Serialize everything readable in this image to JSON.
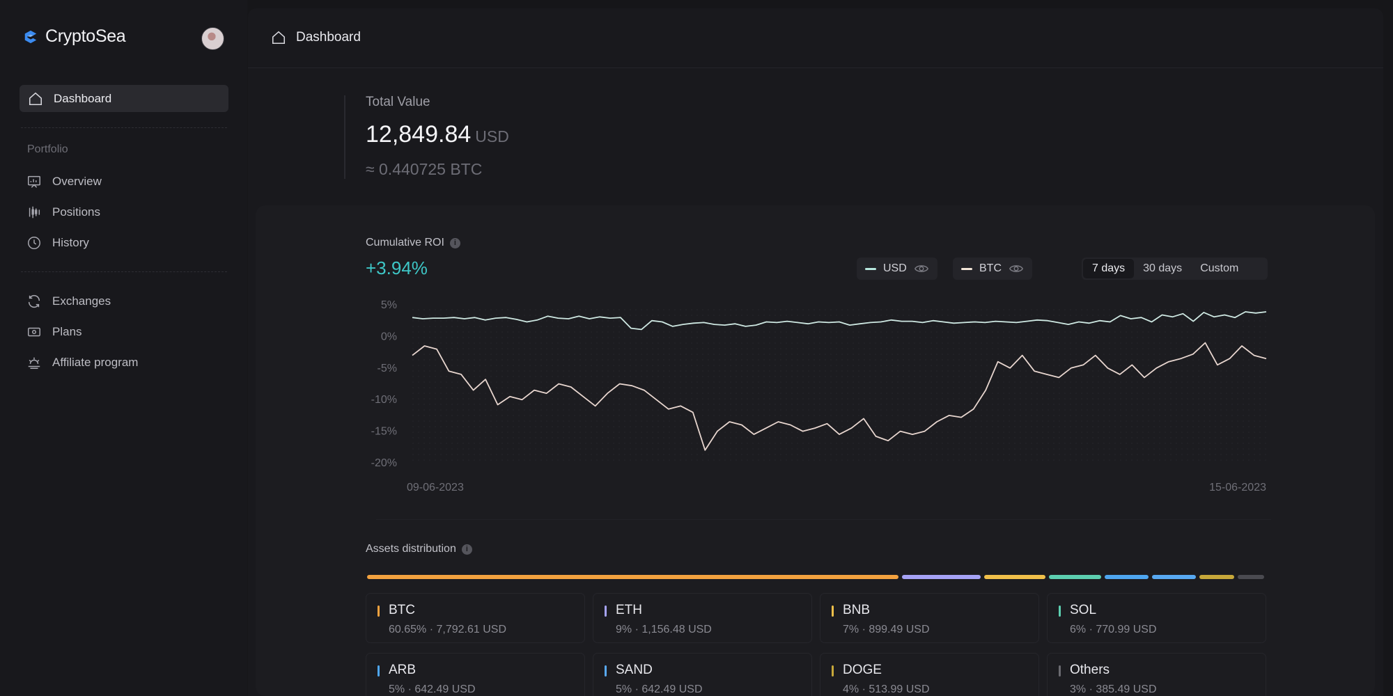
{
  "app": {
    "name": "CryptoSea"
  },
  "sidebar": {
    "active": {
      "label": "Dashboard",
      "icon": "home-icon"
    },
    "section_label": "Portfolio",
    "portfolio_items": [
      {
        "label": "Overview",
        "icon": "presentation-chart-icon"
      },
      {
        "label": "Positions",
        "icon": "candlestick-icon"
      },
      {
        "label": "History",
        "icon": "clock-icon"
      }
    ],
    "other_items": [
      {
        "label": "Exchanges",
        "icon": "refresh-icon"
      },
      {
        "label": "Plans",
        "icon": "banknote-icon"
      },
      {
        "label": "Affiliate program",
        "icon": "sunrise-icon"
      }
    ]
  },
  "header": {
    "breadcrumb": "Dashboard"
  },
  "total": {
    "label": "Total Value",
    "value": "12,849.84",
    "unit": "USD",
    "btc": "≈ 0.440725 BTC"
  },
  "roi": {
    "title": "Cumulative ROI",
    "info": "i",
    "value": "+3.94%",
    "toggles": [
      {
        "label": "USD",
        "color": "#b8e8df"
      },
      {
        "label": "BTC",
        "color": "#f2e6d8"
      }
    ],
    "ranges": [
      "7 days",
      "30 days",
      "Custom"
    ],
    "active_range": "7 days"
  },
  "chart_data": {
    "type": "line",
    "title": "",
    "xlabel": "",
    "ylabel": "",
    "x_ticks": [
      "09-06-2023",
      "15-06-2023"
    ],
    "y_ticks": [
      "5%",
      "0%",
      "-5%",
      "-10%",
      "-15%",
      "-20%"
    ],
    "ylim": [
      -20,
      5
    ],
    "series": [
      {
        "name": "USD",
        "color": "#cfe9e3",
        "values": [
          3.0,
          2.8,
          2.9,
          2.9,
          3.0,
          2.8,
          3.0,
          2.6,
          2.9,
          3.0,
          2.7,
          2.3,
          2.6,
          3.2,
          2.9,
          2.8,
          3.2,
          2.8,
          3.1,
          2.9,
          3.0,
          1.3,
          1.1,
          2.5,
          2.3,
          1.6,
          1.9,
          2.1,
          2.2,
          1.9,
          1.8,
          2.0,
          1.6,
          1.8,
          2.3,
          2.2,
          2.4,
          2.2,
          2.0,
          2.3,
          2.2,
          2.3,
          1.8,
          2.0,
          2.2,
          2.3,
          2.6,
          2.4,
          2.4,
          2.2,
          2.5,
          2.3,
          2.1,
          2.2,
          2.3,
          2.2,
          2.4,
          2.3,
          2.2,
          2.4,
          2.6,
          2.5,
          2.2,
          1.9,
          2.3,
          2.1,
          2.5,
          2.3,
          3.3,
          2.8,
          3.0,
          2.3,
          3.4,
          3.1,
          3.6,
          2.4,
          3.8,
          3.1,
          3.4,
          3.0,
          3.9,
          3.7,
          3.9
        ]
      },
      {
        "name": "BTC",
        "color": "#e8d6cf",
        "values": [
          -3.0,
          -1.5,
          -2.0,
          -5.5,
          -6.0,
          -8.5,
          -6.8,
          -10.8,
          -9.5,
          -10.0,
          -8.5,
          -9.0,
          -7.5,
          -8.0,
          -9.5,
          -11.0,
          -9.0,
          -7.5,
          -7.8,
          -8.5,
          -10.0,
          -11.5,
          -11.0,
          -12.0,
          -18.0,
          -15.0,
          -13.5,
          -14.0,
          -15.5,
          -14.5,
          -13.5,
          -14.0,
          -15.0,
          -14.5,
          -13.8,
          -15.5,
          -14.5,
          -13.0,
          -15.8,
          -16.5,
          -15.0,
          -15.5,
          -15.0,
          -13.5,
          -12.5,
          -12.8,
          -11.5,
          -8.5,
          -4.0,
          -5.0,
          -3.0,
          -5.5,
          -6.0,
          -6.5,
          -5.0,
          -4.5,
          -3.0,
          -5.0,
          -6.0,
          -4.5,
          -6.5,
          -5.0,
          -4.0,
          -3.5,
          -2.8,
          -1.0,
          -4.5,
          -3.5,
          -1.5,
          -3.0,
          -3.5
        ]
      }
    ]
  },
  "assets": {
    "title": "Assets distribution",
    "info": "i",
    "segments": [
      {
        "pct": 60.65,
        "color": "#f3a23f"
      },
      {
        "pct": 9,
        "color": "#a6a3f6"
      },
      {
        "pct": 7,
        "color": "#f0c04a"
      },
      {
        "pct": 6,
        "color": "#5ccfb0"
      },
      {
        "pct": 5,
        "color": "#4ea6f0"
      },
      {
        "pct": 5,
        "color": "#58a9f2"
      },
      {
        "pct": 4,
        "color": "#c7a83a"
      },
      {
        "pct": 3,
        "color": "#4a4a50"
      }
    ],
    "items": [
      {
        "name": "BTC",
        "sub": "60.65% · 7,792.61 USD",
        "color": "#f3a23f"
      },
      {
        "name": "ETH",
        "sub": "9% · 1,156.48 USD",
        "color": "#a6a3f6"
      },
      {
        "name": "BNB",
        "sub": "7% · 899.49 USD",
        "color": "#f0c04a"
      },
      {
        "name": "SOL",
        "sub": "6% · 770.99 USD",
        "color": "#5ccfb0"
      },
      {
        "name": "ARB",
        "sub": "5% · 642.49 USD",
        "color": "#4ea6f0"
      },
      {
        "name": "SAND",
        "sub": "5% · 642.49 USD",
        "color": "#58a9f2"
      },
      {
        "name": "DOGE",
        "sub": "4% · 513.99 USD",
        "color": "#c7a83a"
      },
      {
        "name": "Others",
        "sub": "3% · 385.49 USD",
        "color": "#6a6a70"
      }
    ]
  }
}
